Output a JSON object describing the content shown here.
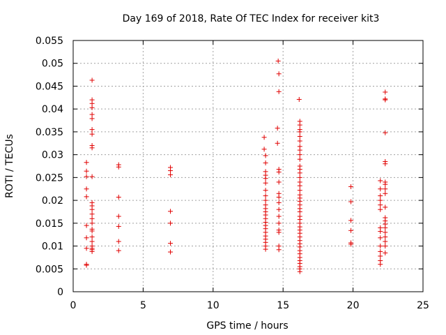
{
  "chart_data": {
    "type": "scatter",
    "title": "Day 169 of 2018, Rate Of TEC Index for receiver kit3",
    "xlabel": "GPS time / hours",
    "ylabel": "ROTI / TECUs",
    "xlim": [
      0,
      25
    ],
    "ylim": [
      0,
      0.055
    ],
    "x_ticks": [
      0,
      5,
      10,
      15,
      20,
      25
    ],
    "x_tick_labels": [
      "0",
      "5",
      "10",
      "15",
      "20",
      "25"
    ],
    "y_ticks": [
      0,
      0.005,
      0.01,
      0.015,
      0.02,
      0.025,
      0.03,
      0.035,
      0.04,
      0.045,
      0.05,
      0.055
    ],
    "y_tick_labels": [
      "0",
      "0.005",
      "0.01",
      "0.015",
      "0.02",
      "0.025",
      "0.03",
      "0.035",
      "0.04",
      "0.045",
      "0.05",
      "0.055"
    ],
    "grid": true,
    "marker": "+",
    "series": [
      {
        "name": "kit3",
        "color": "#e00000",
        "points": [
          [
            0.95,
            0.0283
          ],
          [
            0.95,
            0.0264
          ],
          [
            0.95,
            0.0252
          ],
          [
            0.95,
            0.0225
          ],
          [
            0.95,
            0.0208
          ],
          [
            0.95,
            0.0145
          ],
          [
            0.95,
            0.0118
          ],
          [
            0.95,
            0.0095
          ],
          [
            0.95,
            0.006
          ],
          [
            0.95,
            0.0058
          ],
          [
            1.35,
            0.0463
          ],
          [
            1.35,
            0.042
          ],
          [
            1.35,
            0.0412
          ],
          [
            1.35,
            0.0403
          ],
          [
            1.35,
            0.0388
          ],
          [
            1.35,
            0.0379
          ],
          [
            1.35,
            0.0355
          ],
          [
            1.35,
            0.0345
          ],
          [
            1.35,
            0.032
          ],
          [
            1.35,
            0.0315
          ],
          [
            1.35,
            0.0252
          ],
          [
            1.35,
            0.0195
          ],
          [
            1.35,
            0.0188
          ],
          [
            1.35,
            0.018
          ],
          [
            1.35,
            0.017
          ],
          [
            1.35,
            0.016
          ],
          [
            1.35,
            0.015
          ],
          [
            1.35,
            0.0137
          ],
          [
            1.35,
            0.0133
          ],
          [
            1.35,
            0.012
          ],
          [
            1.35,
            0.011
          ],
          [
            1.35,
            0.01
          ],
          [
            1.35,
            0.0095
          ],
          [
            1.35,
            0.0092
          ],
          [
            1.35,
            0.0088
          ],
          [
            3.25,
            0.0278
          ],
          [
            3.25,
            0.0273
          ],
          [
            3.25,
            0.0207
          ],
          [
            3.25,
            0.0165
          ],
          [
            3.25,
            0.0143
          ],
          [
            3.25,
            0.011
          ],
          [
            3.25,
            0.009
          ],
          [
            6.95,
            0.0272
          ],
          [
            6.95,
            0.0265
          ],
          [
            6.95,
            0.0256
          ],
          [
            6.95,
            0.0176
          ],
          [
            6.95,
            0.015
          ],
          [
            6.95,
            0.0106
          ],
          [
            6.95,
            0.0087
          ],
          [
            13.65,
            0.0338
          ],
          [
            13.65,
            0.0312
          ],
          [
            13.75,
            0.0298
          ],
          [
            13.75,
            0.0282
          ],
          [
            13.75,
            0.0263
          ],
          [
            13.75,
            0.0255
          ],
          [
            13.75,
            0.0248
          ],
          [
            13.75,
            0.0238
          ],
          [
            13.75,
            0.0222
          ],
          [
            13.75,
            0.021
          ],
          [
            13.75,
            0.02
          ],
          [
            13.75,
            0.019
          ],
          [
            13.75,
            0.0182
          ],
          [
            13.75,
            0.0175
          ],
          [
            13.75,
            0.0168
          ],
          [
            13.75,
            0.016
          ],
          [
            13.75,
            0.0152
          ],
          [
            13.75,
            0.0145
          ],
          [
            13.75,
            0.0138
          ],
          [
            13.75,
            0.013
          ],
          [
            13.75,
            0.0122
          ],
          [
            13.75,
            0.0115
          ],
          [
            13.75,
            0.0108
          ],
          [
            13.75,
            0.01
          ],
          [
            13.75,
            0.0093
          ],
          [
            14.65,
            0.0505
          ],
          [
            14.7,
            0.0477
          ],
          [
            14.7,
            0.0438
          ],
          [
            14.6,
            0.0358
          ],
          [
            14.6,
            0.0325
          ],
          [
            14.7,
            0.0268
          ],
          [
            14.7,
            0.0262
          ],
          [
            14.7,
            0.024
          ],
          [
            14.7,
            0.0215
          ],
          [
            14.7,
            0.0207
          ],
          [
            14.7,
            0.0195
          ],
          [
            14.7,
            0.018
          ],
          [
            14.7,
            0.0165
          ],
          [
            14.7,
            0.015
          ],
          [
            14.7,
            0.0135
          ],
          [
            14.7,
            0.013
          ],
          [
            14.7,
            0.01
          ],
          [
            14.7,
            0.0092
          ],
          [
            16.15,
            0.0421
          ],
          [
            16.2,
            0.0373
          ],
          [
            16.2,
            0.0365
          ],
          [
            16.2,
            0.0355
          ],
          [
            16.2,
            0.035
          ],
          [
            16.2,
            0.034
          ],
          [
            16.2,
            0.033
          ],
          [
            16.2,
            0.0318
          ],
          [
            16.2,
            0.031
          ],
          [
            16.2,
            0.03
          ],
          [
            16.2,
            0.029
          ],
          [
            16.2,
            0.0275
          ],
          [
            16.2,
            0.0268
          ],
          [
            16.2,
            0.026
          ],
          [
            16.2,
            0.025
          ],
          [
            16.2,
            0.024
          ],
          [
            16.2,
            0.0232
          ],
          [
            16.2,
            0.0222
          ],
          [
            16.2,
            0.0212
          ],
          [
            16.2,
            0.0205
          ],
          [
            16.2,
            0.0198
          ],
          [
            16.2,
            0.019
          ],
          [
            16.2,
            0.0182
          ],
          [
            16.2,
            0.0175
          ],
          [
            16.2,
            0.0165
          ],
          [
            16.2,
            0.0158
          ],
          [
            16.2,
            0.015
          ],
          [
            16.2,
            0.0142
          ],
          [
            16.2,
            0.0135
          ],
          [
            16.2,
            0.0128
          ],
          [
            16.2,
            0.012
          ],
          [
            16.2,
            0.0112
          ],
          [
            16.2,
            0.0105
          ],
          [
            16.2,
            0.0098
          ],
          [
            16.2,
            0.009
          ],
          [
            16.2,
            0.0083
          ],
          [
            16.2,
            0.0075
          ],
          [
            16.2,
            0.0068
          ],
          [
            16.2,
            0.0062
          ],
          [
            16.2,
            0.0055
          ],
          [
            16.2,
            0.005
          ],
          [
            16.2,
            0.0044
          ],
          [
            19.85,
            0.023
          ],
          [
            19.85,
            0.0197
          ],
          [
            19.85,
            0.0156
          ],
          [
            19.85,
            0.0134
          ],
          [
            19.85,
            0.0107
          ],
          [
            19.85,
            0.0104
          ],
          [
            21.95,
            0.0243
          ],
          [
            21.95,
            0.0225
          ],
          [
            21.95,
            0.021
          ],
          [
            21.95,
            0.02
          ],
          [
            21.95,
            0.019
          ],
          [
            21.95,
            0.018
          ],
          [
            21.95,
            0.014
          ],
          [
            21.95,
            0.0132
          ],
          [
            21.95,
            0.0118
          ],
          [
            21.95,
            0.01
          ],
          [
            21.95,
            0.0088
          ],
          [
            21.95,
            0.0078
          ],
          [
            21.95,
            0.0068
          ],
          [
            21.95,
            0.006
          ],
          [
            22.3,
            0.0437
          ],
          [
            22.3,
            0.0422
          ],
          [
            22.3,
            0.042
          ],
          [
            22.3,
            0.0348
          ],
          [
            22.3,
            0.0285
          ],
          [
            22.3,
            0.028
          ],
          [
            22.3,
            0.024
          ],
          [
            22.3,
            0.0235
          ],
          [
            22.3,
            0.0225
          ],
          [
            22.3,
            0.0215
          ],
          [
            22.3,
            0.0185
          ],
          [
            22.3,
            0.0162
          ],
          [
            22.3,
            0.0155
          ],
          [
            22.3,
            0.0148
          ],
          [
            22.3,
            0.014
          ],
          [
            22.3,
            0.013
          ],
          [
            22.3,
            0.012
          ],
          [
            22.3,
            0.011
          ],
          [
            22.3,
            0.01
          ],
          [
            22.3,
            0.0085
          ]
        ]
      }
    ]
  }
}
